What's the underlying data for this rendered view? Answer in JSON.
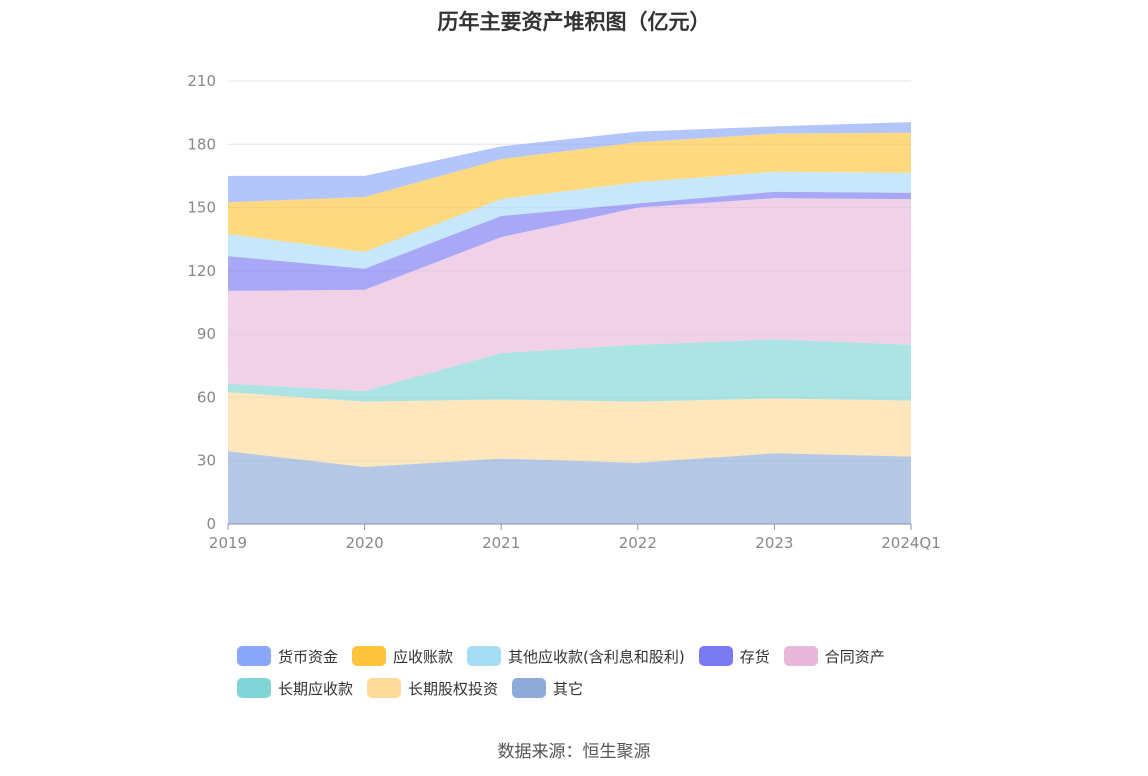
{
  "chart_data": {
    "type": "area",
    "stacked": true,
    "title": "历年主要资产堆积图（亿元）",
    "categories": [
      "2019",
      "2020",
      "2021",
      "2022",
      "2023",
      "2024Q1"
    ],
    "ylim": [
      0,
      210
    ],
    "yticks": [
      0,
      30,
      60,
      90,
      120,
      150,
      180,
      210
    ],
    "grid": true,
    "legend_position": "bottom",
    "series": [
      {
        "name": "其它",
        "color": "#8eaad9",
        "values": [
          34.5,
          27,
          31,
          29,
          33.5,
          32
        ]
      },
      {
        "name": "长期股权投资",
        "color": "#fdd99a",
        "values": [
          28,
          31,
          28,
          29,
          26,
          26.5
        ]
      },
      {
        "name": "长期应收款",
        "color": "#80d6d6",
        "values": [
          4,
          5,
          22,
          27,
          28,
          26.5
        ]
      },
      {
        "name": "合同资产",
        "color": "#e8b8db",
        "values": [
          44,
          48,
          55,
          65,
          67,
          69
        ]
      },
      {
        "name": "存货",
        "color": "#7a7af2",
        "values": [
          16.5,
          10,
          10,
          2,
          3,
          3
        ]
      },
      {
        "name": "其他应收款(含利息和股利)",
        "color": "#a7dcf7",
        "values": [
          10.5,
          8,
          8,
          10,
          9.5,
          9.5
        ]
      },
      {
        "name": "应收账款",
        "color": "#fdc43c",
        "values": [
          15,
          26,
          19,
          19,
          18,
          19
        ]
      },
      {
        "name": "货币资金",
        "color": "#8aa7fb",
        "values": [
          12.5,
          10,
          6,
          5,
          3.5,
          5
        ]
      }
    ]
  },
  "legend": {
    "items": [
      {
        "label": "货币资金",
        "color": "#8aa7fb"
      },
      {
        "label": "应收账款",
        "color": "#fdc43c"
      },
      {
        "label": "其他应收款(含利息和股利)",
        "color": "#a7dcf7"
      },
      {
        "label": "存货",
        "color": "#7a7af2"
      },
      {
        "label": "合同资产",
        "color": "#e8b8db"
      },
      {
        "label": "长期应收款",
        "color": "#80d6d6"
      },
      {
        "label": "长期股权投资",
        "color": "#fdd99a"
      },
      {
        "label": "其它",
        "color": "#8eaad9"
      }
    ]
  },
  "source": "数据来源：恒生聚源"
}
